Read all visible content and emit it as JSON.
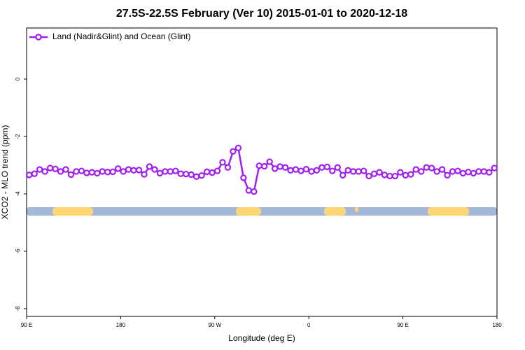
{
  "chart_data": {
    "type": "line",
    "title": "27.5S-22.5S February (Ver 10)   2015-01-01 to 2020-12-18",
    "x_label": "Longitude (deg E)",
    "y_label": "XCO2 - MLO trend (ppm)",
    "xlim": [
      90,
      540
    ],
    "xticks": [
      {
        "value": 90,
        "label": "90 E"
      },
      180,
      {
        "value": 270,
        "label": "90 W"
      },
      {
        "value": 360,
        "label": "0"
      },
      {
        "value": 450,
        "label": "90 E"
      },
      180
    ],
    "ylim": [
      -8.27,
      1.78
    ],
    "yticks": [
      0,
      -2,
      -4,
      -6,
      -8
    ],
    "legend": "upper left",
    "x": [
      92.5,
      97.5,
      102.5,
      107.5,
      112.5,
      117.5,
      122.5,
      127.5,
      132.5,
      137.5,
      142.5,
      147.5,
      152.5,
      157.5,
      162.5,
      167.5,
      172.5,
      177.5,
      182.5,
      187.5,
      192.5,
      197.5,
      202.5,
      207.5,
      212.5,
      217.5,
      222.5,
      227.5,
      232.5,
      237.5,
      242.5,
      247.5,
      252.5,
      257.5,
      262.5,
      267.5,
      272.5,
      277.5,
      282.5,
      287.5,
      292.5,
      297.5,
      302.5,
      307.5,
      312.5,
      317.5,
      322.5,
      327.5,
      332.5,
      337.5,
      342.5,
      347.5,
      352.5,
      357.5,
      362.5,
      367.5,
      372.5,
      377.5,
      382.5,
      387.5,
      392.5,
      397.5,
      402.5,
      407.5,
      412.5,
      417.5,
      422.5,
      427.5,
      432.5,
      437.5,
      442.5,
      447.5,
      452.5,
      457.5,
      462.5,
      467.5,
      472.5,
      477.5,
      482.5,
      487.5,
      492.5,
      497.5,
      502.5,
      507.5,
      512.5,
      517.5,
      522.5,
      527.5,
      532.5,
      537.5
    ],
    "series": [
      {
        "name": "Land (Nadir&Glint) and Ocean (Glint)",
        "color": "#a020f0",
        "values": [
          -3.34,
          -3.3,
          -3.15,
          -3.22,
          -3.1,
          -3.13,
          -3.22,
          -3.15,
          -3.33,
          -3.22,
          -3.2,
          -3.27,
          -3.25,
          -3.28,
          -3.22,
          -3.24,
          -3.23,
          -3.12,
          -3.22,
          -3.15,
          -3.18,
          -3.17,
          -3.32,
          -3.05,
          -3.15,
          -3.28,
          -3.22,
          -3.22,
          -3.2,
          -3.3,
          -3.31,
          -3.33,
          -3.4,
          -3.36,
          -3.23,
          -3.26,
          -3.2,
          -2.9,
          -3.08,
          -2.52,
          -2.4,
          -3.44,
          -3.88,
          -3.92,
          -3.02,
          -3.04,
          -2.88,
          -3.12,
          -3.05,
          -3.08,
          -3.18,
          -3.15,
          -3.2,
          -3.14,
          -3.22,
          -3.18,
          -3.08,
          -3.06,
          -3.2,
          -3.08,
          -3.35,
          -3.18,
          -3.22,
          -3.22,
          -3.2,
          -3.38,
          -3.3,
          -3.25,
          -3.34,
          -3.38,
          -3.38,
          -3.25,
          -3.35,
          -3.32,
          -3.15,
          -3.22,
          -3.08,
          -3.1,
          -3.22,
          -3.15,
          -3.35,
          -3.22,
          -3.2,
          -3.28,
          -3.24,
          -3.28,
          -3.22,
          -3.22,
          -3.25,
          -3.1
        ]
      }
    ]
  }
}
